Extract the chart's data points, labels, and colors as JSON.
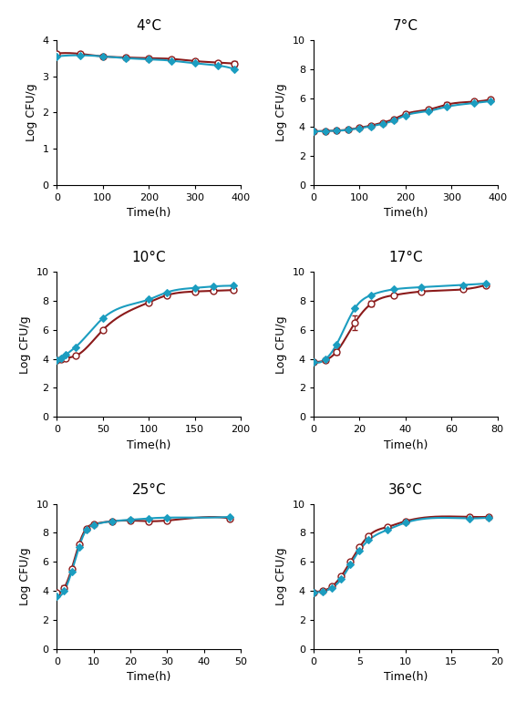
{
  "panels": [
    {
      "title": "4°C",
      "xlim": [
        0,
        400
      ],
      "ylim": [
        0,
        4
      ],
      "xticks": [
        0,
        100,
        200,
        300,
        400
      ],
      "yticks": [
        0,
        1,
        2,
        3,
        4
      ],
      "red_x": [
        0,
        50,
        100,
        150,
        200,
        250,
        300,
        350,
        386
      ],
      "red_y": [
        3.63,
        3.62,
        3.55,
        3.52,
        3.5,
        3.48,
        3.42,
        3.38,
        3.35
      ],
      "red_err": [
        0.05,
        0.05,
        0.04,
        0.04,
        0.04,
        0.04,
        0.04,
        0.04,
        0.08
      ],
      "blue_x": [
        0,
        50,
        100,
        150,
        200,
        250,
        300,
        350,
        386
      ],
      "blue_y": [
        3.55,
        3.58,
        3.55,
        3.5,
        3.47,
        3.43,
        3.36,
        3.3,
        3.2
      ],
      "blue_curve_x": [
        0,
        50,
        100,
        150,
        200,
        250,
        300,
        350,
        400
      ],
      "blue_curve_y": [
        3.55,
        3.57,
        3.54,
        3.49,
        3.46,
        3.42,
        3.35,
        3.28,
        3.2
      ]
    },
    {
      "title": "7°C",
      "xlim": [
        0,
        400
      ],
      "ylim": [
        0,
        10
      ],
      "xticks": [
        0,
        100,
        200,
        300,
        400
      ],
      "yticks": [
        0,
        2,
        4,
        6,
        8,
        10
      ],
      "red_x": [
        0,
        25,
        50,
        75,
        100,
        125,
        150,
        175,
        200,
        250,
        290,
        350,
        385
      ],
      "red_y": [
        3.7,
        3.72,
        3.75,
        3.82,
        3.95,
        4.1,
        4.3,
        4.55,
        4.9,
        5.2,
        5.55,
        5.75,
        5.9
      ],
      "red_err": [
        0.04,
        0.04,
        0.04,
        0.04,
        0.05,
        0.04,
        0.04,
        0.04,
        0.04,
        0.04,
        0.15,
        0.04,
        0.04
      ],
      "blue_x": [
        0,
        25,
        50,
        75,
        100,
        125,
        150,
        175,
        200,
        250,
        290,
        350,
        385
      ],
      "blue_y": [
        3.7,
        3.72,
        3.74,
        3.8,
        3.92,
        4.05,
        4.22,
        4.45,
        4.8,
        5.1,
        5.4,
        5.65,
        5.8
      ],
      "blue_curve_x": [
        0,
        25,
        50,
        75,
        100,
        125,
        150,
        175,
        200,
        250,
        290,
        350,
        385
      ],
      "blue_curve_y": [
        3.7,
        3.72,
        3.74,
        3.8,
        3.92,
        4.05,
        4.22,
        4.45,
        4.8,
        5.1,
        5.4,
        5.65,
        5.8
      ]
    },
    {
      "title": "10°C",
      "xlim": [
        0,
        200
      ],
      "ylim": [
        0,
        10
      ],
      "xticks": [
        0,
        50,
        100,
        150,
        200
      ],
      "yticks": [
        0,
        2,
        4,
        6,
        8,
        10
      ],
      "red_x": [
        0,
        5,
        10,
        20,
        50,
        100,
        120,
        150,
        170,
        192
      ],
      "red_y": [
        3.9,
        3.95,
        4.05,
        4.2,
        6.0,
        7.9,
        8.4,
        8.65,
        8.7,
        8.75
      ],
      "red_err": [
        0.05,
        0.05,
        0.05,
        0.05,
        0.05,
        0.08,
        0.05,
        0.05,
        0.05,
        0.05
      ],
      "blue_x": [
        0,
        5,
        10,
        20,
        50,
        100,
        120,
        150,
        170,
        192
      ],
      "blue_y": [
        3.9,
        4.05,
        4.3,
        4.8,
        6.8,
        8.1,
        8.6,
        8.9,
        9.0,
        9.05
      ],
      "blue_curve_x": [
        0,
        5,
        10,
        20,
        50,
        100,
        120,
        150,
        170,
        192
      ],
      "blue_curve_y": [
        3.9,
        4.05,
        4.3,
        4.8,
        6.8,
        8.1,
        8.6,
        8.9,
        9.0,
        9.05
      ]
    },
    {
      "title": "17°C",
      "xlim": [
        0,
        80
      ],
      "ylim": [
        0,
        10
      ],
      "xticks": [
        0,
        20,
        40,
        60,
        80
      ],
      "yticks": [
        0,
        2,
        4,
        6,
        8,
        10
      ],
      "red_x": [
        0,
        5,
        10,
        18,
        25,
        35,
        47,
        65,
        75
      ],
      "red_y": [
        3.8,
        3.9,
        4.5,
        6.5,
        7.8,
        8.4,
        8.65,
        8.8,
        9.1
      ],
      "red_err": [
        0.05,
        0.1,
        0.2,
        0.5,
        0.2,
        0.1,
        0.1,
        0.05,
        0.05
      ],
      "blue_x": [
        0,
        5,
        10,
        18,
        25,
        35,
        47,
        65,
        75
      ],
      "blue_y": [
        3.8,
        3.95,
        5.0,
        7.5,
        8.4,
        8.8,
        8.95,
        9.1,
        9.2
      ],
      "blue_curve_x": [
        0,
        5,
        10,
        18,
        25,
        35,
        47,
        65,
        75
      ],
      "blue_curve_y": [
        3.8,
        3.95,
        5.0,
        7.5,
        8.4,
        8.8,
        8.95,
        9.1,
        9.2
      ]
    },
    {
      "title": "25°C",
      "xlim": [
        0,
        50
      ],
      "ylim": [
        0,
        10
      ],
      "xticks": [
        0,
        10,
        20,
        30,
        40,
        50
      ],
      "yticks": [
        0,
        2,
        4,
        6,
        8,
        10
      ],
      "red_x": [
        0,
        2,
        4,
        6,
        8,
        10,
        15,
        20,
        25,
        30,
        47
      ],
      "red_y": [
        3.9,
        4.2,
        5.5,
        7.2,
        8.3,
        8.6,
        8.8,
        8.85,
        8.8,
        8.85,
        9.0
      ],
      "red_err": [
        0.05,
        0.15,
        0.15,
        0.08,
        0.05,
        0.05,
        0.05,
        0.05,
        0.08,
        0.05,
        0.05
      ],
      "blue_x": [
        0,
        2,
        4,
        6,
        8,
        10,
        15,
        20,
        25,
        30,
        47
      ],
      "blue_y": [
        3.6,
        4.0,
        5.3,
        7.0,
        8.2,
        8.55,
        8.8,
        8.9,
        9.0,
        9.05,
        9.1
      ],
      "blue_curve_x": [
        0,
        2,
        4,
        6,
        8,
        10,
        15,
        20,
        25,
        30,
        47
      ],
      "blue_curve_y": [
        3.6,
        4.0,
        5.3,
        7.0,
        8.2,
        8.55,
        8.8,
        8.9,
        9.0,
        9.05,
        9.1
      ]
    },
    {
      "title": "36°C",
      "xlim": [
        0,
        20
      ],
      "ylim": [
        0,
        10
      ],
      "xticks": [
        0,
        5,
        10,
        15,
        20
      ],
      "yticks": [
        0,
        2,
        4,
        6,
        8,
        10
      ],
      "red_x": [
        0,
        1,
        2,
        3,
        4,
        5,
        6,
        8,
        10,
        17,
        19
      ],
      "red_y": [
        3.9,
        4.0,
        4.3,
        5.0,
        6.0,
        7.0,
        7.8,
        8.4,
        8.8,
        9.1,
        9.1
      ],
      "red_err": [
        0.05,
        0.05,
        0.08,
        0.08,
        0.08,
        0.05,
        0.05,
        0.05,
        0.05,
        0.05,
        0.05
      ],
      "blue_x": [
        0,
        1,
        2,
        3,
        4,
        5,
        6,
        8,
        10,
        17,
        19
      ],
      "blue_y": [
        3.9,
        3.95,
        4.2,
        4.8,
        5.8,
        6.8,
        7.5,
        8.2,
        8.7,
        9.0,
        9.05
      ],
      "blue_curve_x": [
        0,
        1,
        2,
        3,
        4,
        5,
        6,
        8,
        10,
        17,
        19
      ],
      "blue_curve_y": [
        3.9,
        3.95,
        4.2,
        4.8,
        5.8,
        6.8,
        7.5,
        8.2,
        8.7,
        9.0,
        9.05
      ]
    }
  ],
  "red_color": "#8B1A1A",
  "blue_color": "#1B9DC0",
  "red_line_color": "#8B2020",
  "blue_line_color": "#1B9DC0",
  "marker_size": 5,
  "linewidth": 1.5
}
